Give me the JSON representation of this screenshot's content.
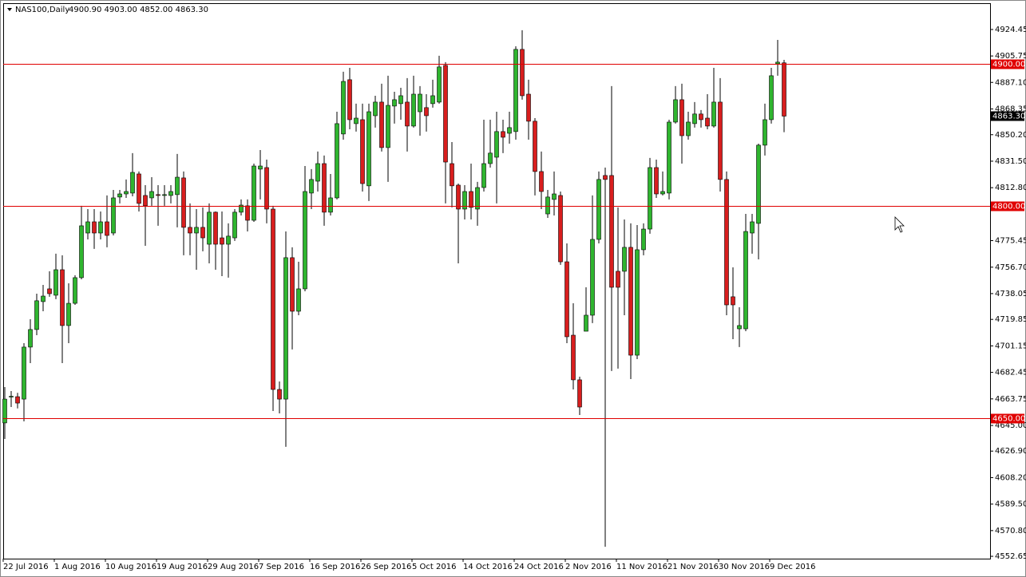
{
  "chart_data": {
    "type": "candlestick",
    "title": "NAS100,Daily",
    "ohlc_text": "4900.90 4903.00 4852.00 4863.30",
    "categories": [
      "22 Jul 2016",
      null,
      null,
      null,
      null,
      null,
      null,
      null,
      "1 Aug 2016",
      null,
      null,
      null,
      null,
      null,
      null,
      null,
      "10 Aug 2016",
      null,
      null,
      null,
      null,
      null,
      null,
      null,
      "19 Aug 2016",
      null,
      null,
      null,
      null,
      null,
      null,
      null,
      "29 Aug 2016",
      null,
      null,
      null,
      null,
      null,
      null,
      null,
      "7 Sep 2016",
      null,
      null,
      null,
      null,
      null,
      null,
      null,
      "16 Sep 2016",
      null,
      null,
      null,
      null,
      null,
      null,
      null,
      "26 Sep 2016",
      null,
      null,
      null,
      null,
      null,
      null,
      null,
      "5 Oct 2016",
      null,
      null,
      null,
      null,
      null,
      null,
      null,
      "14 Oct 2016",
      null,
      null,
      null,
      null,
      null,
      null,
      null,
      "24 Oct 2016",
      null,
      null,
      null,
      null,
      null,
      null,
      null,
      "2 Nov 2016",
      null,
      null,
      null,
      null,
      null,
      null,
      null,
      "11 Nov 2016",
      null,
      null,
      null,
      null,
      null,
      null,
      null,
      "21 Nov 2016",
      null,
      null,
      null,
      null,
      null,
      null,
      null,
      "30 Nov 2016",
      null,
      null,
      null,
      null,
      null,
      null,
      null,
      "9 Dec 2016",
      null,
      null
    ],
    "open": [
      4646.8,
      4665.3,
      4665.3,
      4663.6,
      4700.3,
      4712.7,
      4732.4,
      4741.4,
      4736.9,
      4754.9,
      4715.5,
      4731.2,
      4749.3,
      4780.8,
      4788.7,
      4780.8,
      4788.7,
      4780.8,
      4806.2,
      4808.4,
      4809.0,
      4822.5,
      4807.3,
      4805.6,
      4807.9,
      4807.3,
      4807.3,
      4807.9,
      4819.7,
      4784.8,
      4780.8,
      4784.8,
      4772.9,
      4795.5,
      4777.4,
      4772.9,
      4777.4,
      4795.5,
      4800.0,
      4789.8,
      4825.9,
      4827.0,
      4797.7,
      4670.4,
      4663.6,
      4763.4,
      4725.6,
      4741.4,
      4809.0,
      4817.4,
      4829.8,
      4795.5,
      4805.6,
      4850.7,
      4889.0,
      4858.0,
      4860.8,
      4814.1,
      4863.6,
      4873.2,
      4841.1,
      4870.4,
      4872.1,
      4873.2,
      4856.3,
      4866.4,
      4869.3,
      4872.1,
      4873.2,
      4899.1,
      4829.8,
      4814.6,
      4797.7,
      4810.1,
      4797.7,
      4812.9,
      4829.8,
      4834.3,
      4852.4,
      4851.2,
      4852.4,
      4910.4,
      4878.8,
      4859.7,
      4824.2,
      4794.3,
      4804.5,
      4807.3,
      4760.5,
      4708.7,
      4677.2,
      4711.5,
      4722.8,
      4776.3,
      4821.4,
      4821.4,
      4753.8,
      4753.8,
      4770.7,
      4694.6,
      4769.0,
      4783.6,
      4827.0,
      4808.4,
      4809.0,
      4859.1,
      4874.9,
      4849.5,
      4858.0,
      4864.8,
      4861.9,
      4856.3,
      4873.2,
      4818.6,
      4735.8,
      4713.2,
      4713.2,
      4780.8,
      4787.6,
      4842.8,
      4860.8,
      4900.2,
      4900.9
    ],
    "high": [
      4672.1,
      4669.3,
      4668.0,
      4703.1,
      4720.0,
      4738.0,
      4744.2,
      4753.8,
      4766.2,
      4765.1,
      4745.3,
      4751.0,
      4800.0,
      4797.7,
      4797.7,
      4796.0,
      4807.3,
      4811.2,
      4811.2,
      4818.6,
      4837.2,
      4824.2,
      4814.6,
      4820.2,
      4814.6,
      4814.6,
      4814.6,
      4836.6,
      4824.2,
      4801.7,
      4797.7,
      4798.9,
      4801.7,
      4796.0,
      4796.0,
      4787.6,
      4797.7,
      4804.5,
      4804.5,
      4829.8,
      4839.4,
      4832.6,
      4800.0,
      4676.0,
      4781.9,
      4770.7,
      4760.5,
      4828.1,
      4825.9,
      4838.3,
      4835.5,
      4822.5,
      4866.4,
      4894.6,
      4897.4,
      4872.1,
      4872.1,
      4872.1,
      4877.7,
      4886.2,
      4891.8,
      4880.5,
      4883.3,
      4890.1,
      4891.8,
      4884.5,
      4878.8,
      4889.0,
      4905.9,
      4901.4,
      4845.0,
      4815.7,
      4814.6,
      4829.8,
      4816.9,
      4860.8,
      4860.8,
      4866.4,
      4860.8,
      4866.4,
      4912.6,
      4923.9,
      4889.0,
      4861.9,
      4838.3,
      4811.2,
      4824.2,
      4810.1,
      4773.5,
      4731.2,
      4679.4,
      4742.5,
      4807.3,
      4824.2,
      4827.0,
      4884.5,
      4798.9,
      4790.4,
      4787.6,
      4786.4,
      4787.6,
      4833.8,
      4832.6,
      4824.2,
      4860.8,
      4884.5,
      4886.2,
      4866.4,
      4873.2,
      4867.6,
      4878.8,
      4897.4,
      4890.1,
      4824.2,
      4756.6,
      4728.4,
      4794.3,
      4794.3,
      4843.9,
      4872.1,
      4897.4,
      4917.1,
      4903.0
    ],
    "low": [
      4635.5,
      4658.0,
      4657.0,
      4647.9,
      4689.0,
      4708.7,
      4725.6,
      4735.8,
      4734.1,
      4689.0,
      4703.1,
      4730.1,
      4748.1,
      4776.3,
      4769.6,
      4776.3,
      4770.7,
      4779.1,
      4801.7,
      4805.6,
      4806.7,
      4796.0,
      4771.8,
      4800.0,
      4785.9,
      4800.0,
      4801.7,
      4784.8,
      4765.1,
      4765.1,
      4754.9,
      4767.9,
      4759.4,
      4754.9,
      4750.4,
      4749.3,
      4775.2,
      4793.2,
      4781.9,
      4788.7,
      4804.5,
      4787.6,
      4655.2,
      4653.5,
      4629.9,
      4698.6,
      4722.8,
      4739.7,
      4797.7,
      4810.1,
      4785.9,
      4793.2,
      4804.5,
      4846.7,
      4854.0,
      4852.4,
      4810.1,
      4803.4,
      4855.2,
      4838.3,
      4816.9,
      4858.0,
      4860.8,
      4838.3,
      4855.2,
      4849.5,
      4852.4,
      4869.3,
      4872.1,
      4801.7,
      4798.9,
      4759.4,
      4790.4,
      4790.4,
      4785.9,
      4810.1,
      4827.0,
      4801.7,
      4837.2,
      4843.9,
      4846.7,
      4874.9,
      4846.7,
      4807.3,
      4797.7,
      4791.5,
      4793.2,
      4758.3,
      4703.1,
      4670.4,
      4652.4,
      4711.5,
      4717.2,
      4773.5,
      4559.4,
      4683.4,
      4685.1,
      4722.8,
      4677.7,
      4691.8,
      4765.1,
      4780.3,
      4805.6,
      4807.3,
      4804.5,
      4858.0,
      4829.8,
      4846.7,
      4855.2,
      4855.2,
      4854.0,
      4855.2,
      4810.1,
      4722.8,
      4705.9,
      4700.3,
      4711.5,
      4766.2,
      4762.2,
      4835.5,
      4858.0,
      4891.8,
      4852.0
    ],
    "close": [
      4663.6,
      4665.6,
      4660.8,
      4700.3,
      4712.7,
      4733.0,
      4736.3,
      4738.0,
      4754.9,
      4715.5,
      4731.2,
      4749.3,
      4785.9,
      4788.7,
      4780.8,
      4788.7,
      4779.1,
      4805.6,
      4808.4,
      4810.1,
      4823.6,
      4801.7,
      4800.0,
      4810.1,
      4807.3,
      4807.9,
      4810.1,
      4820.2,
      4784.8,
      4780.8,
      4784.8,
      4777.4,
      4795.5,
      4772.9,
      4772.9,
      4778.6,
      4795.5,
      4800.5,
      4789.8,
      4828.1,
      4828.1,
      4797.7,
      4670.4,
      4663.6,
      4763.4,
      4725.6,
      4741.4,
      4810.1,
      4818.6,
      4829.8,
      4795.5,
      4805.6,
      4858.0,
      4887.8,
      4860.8,
      4861.9,
      4815.7,
      4866.4,
      4873.2,
      4841.1,
      4870.9,
      4874.9,
      4877.7,
      4856.3,
      4878.8,
      4878.8,
      4863.6,
      4877.7,
      4898.0,
      4830.9,
      4814.1,
      4797.7,
      4810.1,
      4798.9,
      4812.9,
      4829.8,
      4837.2,
      4852.4,
      4848.4,
      4855.2,
      4910.4,
      4877.7,
      4859.7,
      4824.2,
      4810.1,
      4806.2,
      4808.4,
      4760.5,
      4707.6,
      4677.2,
      4658.0,
      4722.8,
      4776.3,
      4818.6,
      4818.6,
      4742.5,
      4742.5,
      4770.7,
      4694.6,
      4769.0,
      4783.6,
      4827.0,
      4808.4,
      4810.1,
      4859.1,
      4874.9,
      4849.5,
      4859.1,
      4864.8,
      4860.8,
      4856.3,
      4873.2,
      4818.6,
      4730.1,
      4730.1,
      4715.5,
      4781.9,
      4788.7,
      4842.8,
      4860.8,
      4891.8,
      4901.4,
      4863.3
    ],
    "up_color": "#2fb52f",
    "down_color": "#d81e1e",
    "level_color": "#e00000",
    "ylim": [
      4551.0,
      4943.0
    ],
    "yticks": [
      {
        "value": 4924.45,
        "label": "4924.45"
      },
      {
        "value": 4905.75,
        "label": "4905.75"
      },
      {
        "value": 4887.1,
        "label": "4887.10"
      },
      {
        "value": 4868.35,
        "label": "4868.35"
      },
      {
        "value": 4850.2,
        "label": "4850.20"
      },
      {
        "value": 4831.5,
        "label": "4831.50"
      },
      {
        "value": 4812.8,
        "label": "4812.80"
      },
      {
        "value": 4775.45,
        "label": "4775.45"
      },
      {
        "value": 4756.7,
        "label": "4756.70"
      },
      {
        "value": 4738.05,
        "label": "4738.05"
      },
      {
        "value": 4719.85,
        "label": "4719.85"
      },
      {
        "value": 4701.15,
        "label": "4701.15"
      },
      {
        "value": 4682.45,
        "label": "4682.45"
      },
      {
        "value": 4663.75,
        "label": "4663.75"
      },
      {
        "value": 4645,
        "label": "4645.00"
      },
      {
        "value": 4626.9,
        "label": "4626.90"
      },
      {
        "value": 4608.2,
        "label": "4608.20"
      },
      {
        "value": 4589.5,
        "label": "4589.50"
      },
      {
        "value": 4570.8,
        "label": "4570.80"
      },
      {
        "value": 4552.65,
        "label": "4552.65"
      }
    ],
    "levels": [
      {
        "value": 4900,
        "label": "4900.00"
      },
      {
        "value": 4800,
        "label": "4800.00"
      },
      {
        "value": 4650,
        "label": "4650.00"
      }
    ],
    "last_price": {
      "value": 4863.3,
      "label": "4863.30"
    }
  }
}
